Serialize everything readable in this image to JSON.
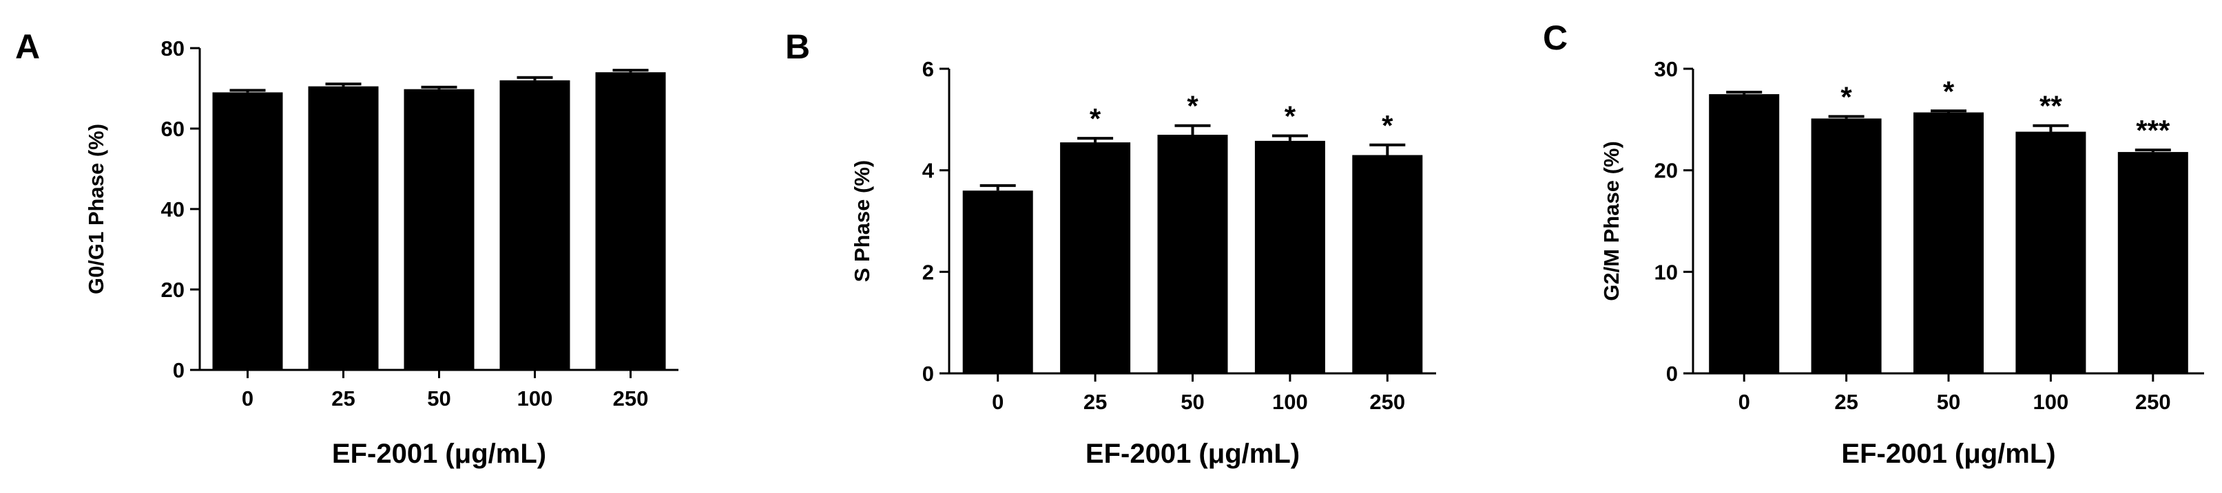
{
  "figure": {
    "colors": {
      "bar": "#000000",
      "axis": "#000000",
      "background": "#ffffff"
    }
  },
  "chart_data": [
    {
      "panel": "A",
      "type": "bar",
      "categories": [
        "0",
        "25",
        "50",
        "100",
        "250"
      ],
      "values": [
        69,
        70.5,
        69.8,
        72,
        74
      ],
      "errors": [
        0.5,
        0.6,
        0.5,
        0.7,
        0.5
      ],
      "significance": [
        "",
        "",
        "",
        "",
        ""
      ],
      "xlabel": "EF-2001 (μg/mL)",
      "ylabel": "G0/G1 Phase (%)",
      "ylim": [
        0,
        80
      ],
      "yticks": [
        "0",
        "20",
        "40",
        "60",
        "80"
      ]
    },
    {
      "panel": "B",
      "type": "bar",
      "categories": [
        "0",
        "25",
        "50",
        "100",
        "250"
      ],
      "values": [
        3.6,
        4.55,
        4.7,
        4.58,
        4.3
      ],
      "errors": [
        0.1,
        0.08,
        0.18,
        0.1,
        0.2
      ],
      "significance": [
        "",
        "*",
        "*",
        "*",
        "*"
      ],
      "xlabel": "EF-2001 (μg/mL)",
      "ylabel": "S Phase (%)",
      "ylim": [
        0,
        6
      ],
      "yticks": [
        "0",
        "2",
        "4",
        "6"
      ]
    },
    {
      "panel": "C",
      "type": "bar",
      "categories": [
        "0",
        "25",
        "50",
        "100",
        "250"
      ],
      "values": [
        27.5,
        25.1,
        25.7,
        23.8,
        21.8
      ],
      "errors": [
        0.2,
        0.2,
        0.15,
        0.6,
        0.2
      ],
      "significance": [
        "",
        "*",
        "*",
        "**",
        "***"
      ],
      "xlabel": "EF-2001 (μg/mL)",
      "ylabel": "G2/M Phase (%)",
      "ylim": [
        0,
        30
      ],
      "yticks": [
        "0",
        "10",
        "20",
        "30"
      ]
    }
  ]
}
